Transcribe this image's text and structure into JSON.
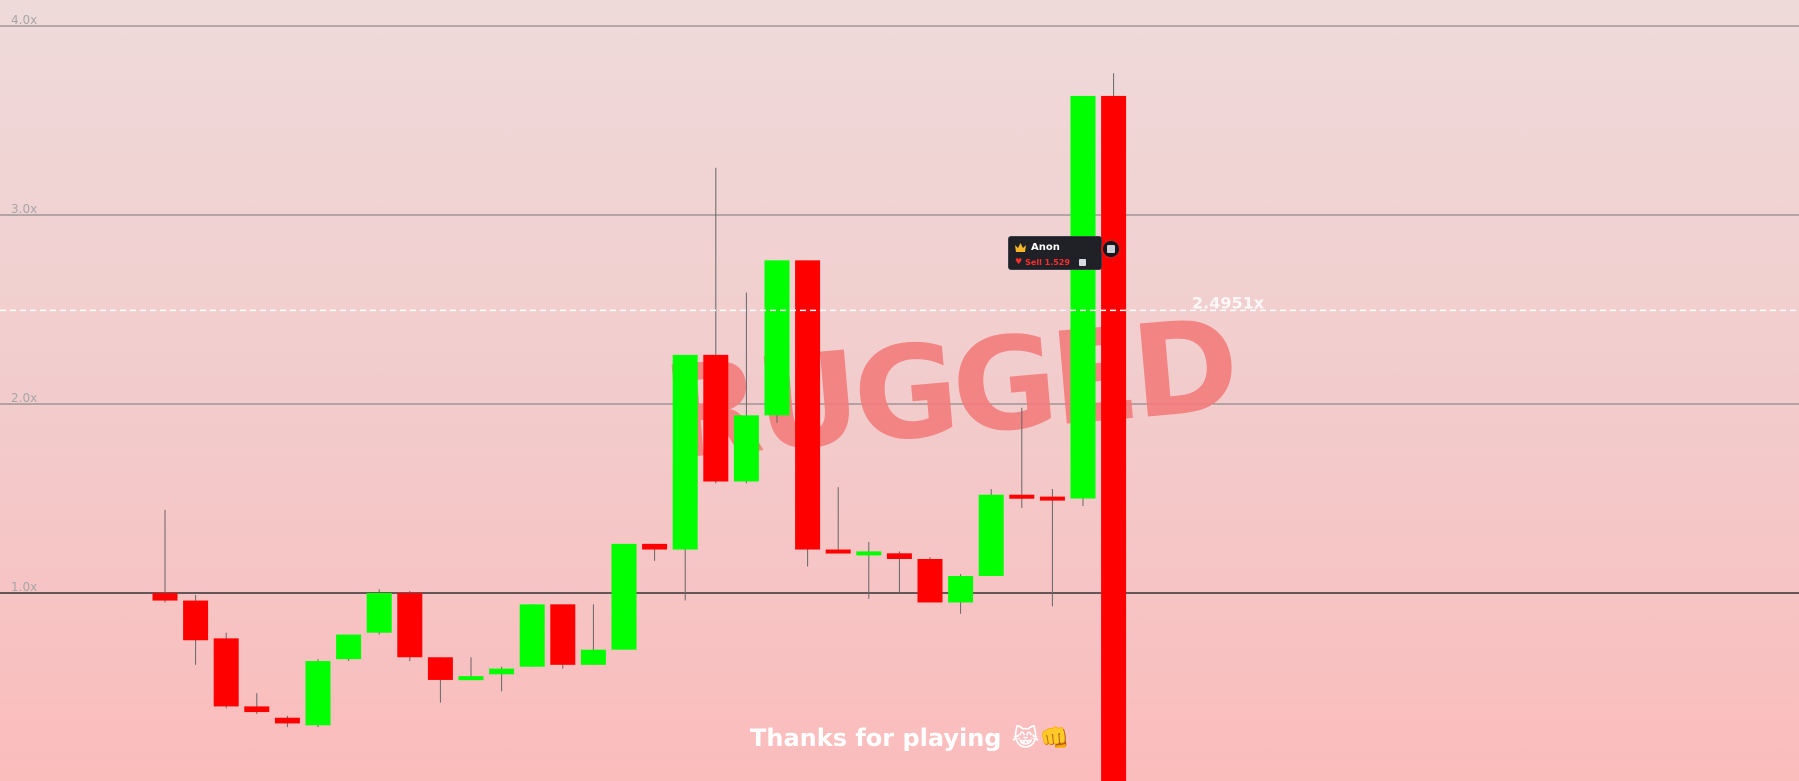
{
  "game": {
    "overlay_word": "RUGGED",
    "footer_message": "Thanks for playing",
    "footer_emojis": "😹👊",
    "current_multiplier": "2.4951x"
  },
  "player_tag": {
    "username": "Anon",
    "action": "Sell 1.529",
    "icon": "crown-icon",
    "marker_icon": "token-icon"
  },
  "colors": {
    "up": "#00ff00",
    "down": "#ff0000",
    "gridline": "#777777",
    "baseline": "#333333",
    "dashed_line": "#ffffff"
  },
  "chart_data": {
    "type": "candlestick",
    "y_unit": "multiplier",
    "y_tick_labels": [
      "4.0x",
      "3.0x",
      "2.0x",
      "1.0x"
    ],
    "y_ticks": [
      4.0,
      3.0,
      2.0,
      1.0
    ],
    "baseline": 1.0,
    "current_price": 2.4951,
    "ylim": [
      0.0,
      4.14
    ],
    "grid": true,
    "candles": [
      {
        "open": 1.0,
        "close": 0.96,
        "high": 1.44,
        "low": 0.95
      },
      {
        "open": 0.96,
        "close": 0.75,
        "high": 0.99,
        "low": 0.62
      },
      {
        "open": 0.76,
        "close": 0.4,
        "high": 0.79,
        "low": 0.39
      },
      {
        "open": 0.4,
        "close": 0.37,
        "high": 0.47,
        "low": 0.36
      },
      {
        "open": 0.34,
        "close": 0.31,
        "high": 0.35,
        "low": 0.29
      },
      {
        "open": 0.3,
        "close": 0.64,
        "high": 0.65,
        "low": 0.29
      },
      {
        "open": 0.65,
        "close": 0.78,
        "high": 0.78,
        "low": 0.64
      },
      {
        "open": 0.79,
        "close": 1.0,
        "high": 1.02,
        "low": 0.78
      },
      {
        "open": 1.0,
        "close": 0.66,
        "high": 1.01,
        "low": 0.64
      },
      {
        "open": 0.66,
        "close": 0.54,
        "high": 0.66,
        "low": 0.42
      },
      {
        "open": 0.54,
        "close": 0.56,
        "high": 0.66,
        "low": 0.54
      },
      {
        "open": 0.57,
        "close": 0.6,
        "high": 0.61,
        "low": 0.48
      },
      {
        "open": 0.61,
        "close": 0.94,
        "high": 0.94,
        "low": 0.61
      },
      {
        "open": 0.94,
        "close": 0.62,
        "high": 0.94,
        "low": 0.6
      },
      {
        "open": 0.62,
        "close": 0.7,
        "high": 0.94,
        "low": 0.62
      },
      {
        "open": 0.7,
        "close": 1.26,
        "high": 1.26,
        "low": 0.7
      },
      {
        "open": 1.26,
        "close": 1.23,
        "high": 1.26,
        "low": 1.17
      },
      {
        "open": 1.23,
        "close": 2.26,
        "high": 2.26,
        "low": 0.96
      },
      {
        "open": 2.26,
        "close": 1.59,
        "high": 3.25,
        "low": 1.58
      },
      {
        "open": 1.59,
        "close": 1.94,
        "high": 2.59,
        "low": 1.58
      },
      {
        "open": 1.94,
        "close": 2.76,
        "high": 2.76,
        "low": 1.9
      },
      {
        "open": 2.76,
        "close": 1.23,
        "high": 2.76,
        "low": 1.14
      },
      {
        "open": 1.23,
        "close": 1.21,
        "high": 1.56,
        "low": 1.21
      },
      {
        "open": 1.22,
        "close": 1.22,
        "high": 1.27,
        "low": 0.97
      },
      {
        "open": 1.21,
        "close": 1.18,
        "high": 1.22,
        "low": 1.0
      },
      {
        "open": 1.18,
        "close": 0.95,
        "high": 1.19,
        "low": 0.95
      },
      {
        "open": 0.95,
        "close": 1.09,
        "high": 1.1,
        "low": 0.89
      },
      {
        "open": 1.09,
        "close": 1.52,
        "high": 1.55,
        "low": 1.09
      },
      {
        "open": 1.52,
        "close": 1.51,
        "high": 1.98,
        "low": 1.45
      },
      {
        "open": 1.51,
        "close": 1.49,
        "high": 1.55,
        "low": 0.93
      },
      {
        "open": 1.5,
        "close": 3.63,
        "high": 3.63,
        "low": 1.46
      },
      {
        "open": 3.63,
        "close": 0.0,
        "high": 3.75,
        "low": 0.0
      }
    ]
  }
}
